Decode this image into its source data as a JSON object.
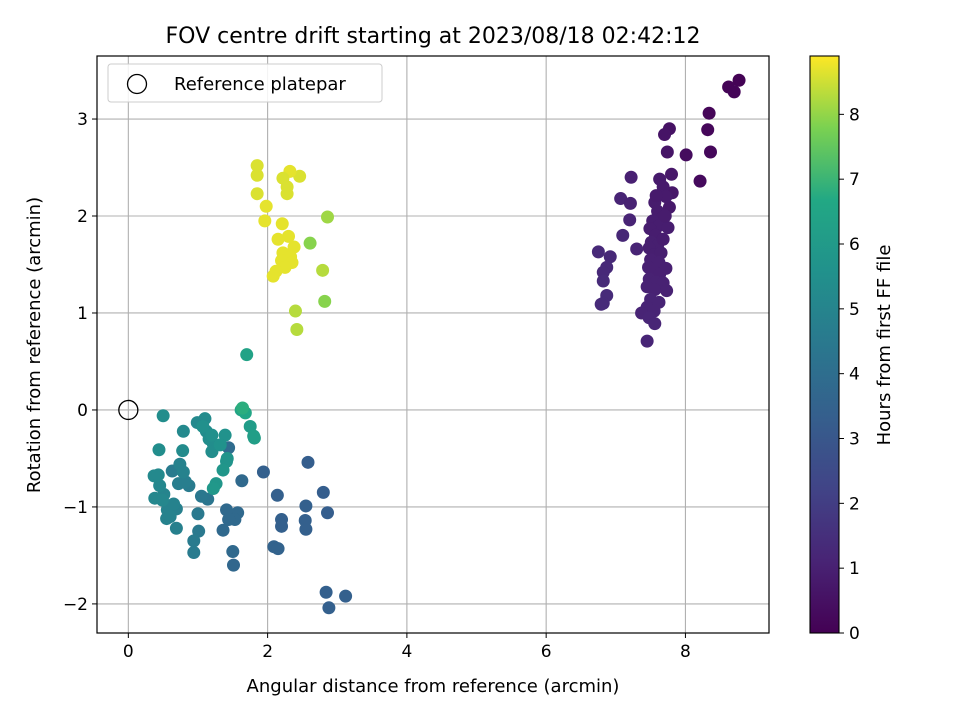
{
  "chart_data": {
    "type": "scatter",
    "title": "FOV centre drift starting at 2023/08/18 02:42:12",
    "xlabel": "Angular distance from reference (arcmin)",
    "ylabel": "Rotation from reference (arcmin)",
    "xlim": [
      -0.45,
      9.2
    ],
    "ylim": [
      -2.3,
      3.65
    ],
    "xticks": [
      0,
      2,
      4,
      6,
      8
    ],
    "yticks": [
      -2,
      -1,
      0,
      1,
      2,
      3
    ],
    "grid": true,
    "legend": {
      "position": "top-left",
      "entries": [
        "Reference platepar"
      ]
    },
    "reference_point": {
      "x": 0,
      "y": 0,
      "label": "Reference platepar"
    },
    "colorbar": {
      "label": "Hours from first FF file",
      "colormap": "viridis",
      "range": [
        0,
        8.9
      ],
      "ticks": [
        0,
        1,
        2,
        3,
        4,
        5,
        6,
        7,
        8
      ]
    },
    "points": [
      {
        "x": 8.77,
        "y": 3.4,
        "h": 0.05
      },
      {
        "x": 8.62,
        "y": 3.33,
        "h": 0.08
      },
      {
        "x": 8.7,
        "y": 3.28,
        "h": 0.1
      },
      {
        "x": 8.34,
        "y": 3.06,
        "h": 0.15
      },
      {
        "x": 8.32,
        "y": 2.89,
        "h": 0.2
      },
      {
        "x": 8.36,
        "y": 2.66,
        "h": 0.22
      },
      {
        "x": 8.01,
        "y": 2.63,
        "h": 0.35
      },
      {
        "x": 8.21,
        "y": 2.36,
        "h": 0.3
      },
      {
        "x": 7.77,
        "y": 2.9,
        "h": 0.55
      },
      {
        "x": 7.7,
        "y": 2.84,
        "h": 0.6
      },
      {
        "x": 7.74,
        "y": 2.66,
        "h": 0.65
      },
      {
        "x": 7.8,
        "y": 2.43,
        "h": 0.7
      },
      {
        "x": 7.81,
        "y": 2.24,
        "h": 0.7
      },
      {
        "x": 7.77,
        "y": 2.09,
        "h": 0.75
      },
      {
        "x": 7.63,
        "y": 2.38,
        "h": 0.8
      },
      {
        "x": 7.68,
        "y": 2.3,
        "h": 0.8
      },
      {
        "x": 7.72,
        "y": 2.2,
        "h": 0.8
      },
      {
        "x": 7.56,
        "y": 2.14,
        "h": 0.85
      },
      {
        "x": 7.6,
        "y": 2.05,
        "h": 0.85
      },
      {
        "x": 7.66,
        "y": 1.98,
        "h": 0.85
      },
      {
        "x": 7.53,
        "y": 1.95,
        "h": 0.9
      },
      {
        "x": 7.62,
        "y": 1.9,
        "h": 0.9
      },
      {
        "x": 7.75,
        "y": 1.88,
        "h": 0.9
      },
      {
        "x": 7.49,
        "y": 1.87,
        "h": 0.9
      },
      {
        "x": 7.57,
        "y": 1.8,
        "h": 0.9
      },
      {
        "x": 7.51,
        "y": 1.73,
        "h": 0.95
      },
      {
        "x": 7.6,
        "y": 1.7,
        "h": 0.95
      },
      {
        "x": 7.48,
        "y": 1.67,
        "h": 0.95
      },
      {
        "x": 7.55,
        "y": 1.6,
        "h": 0.95
      },
      {
        "x": 7.65,
        "y": 1.62,
        "h": 0.95
      },
      {
        "x": 7.5,
        "y": 1.55,
        "h": 1.0
      },
      {
        "x": 7.62,
        "y": 1.52,
        "h": 1.0
      },
      {
        "x": 7.72,
        "y": 1.46,
        "h": 1.0
      },
      {
        "x": 7.47,
        "y": 1.47,
        "h": 1.0
      },
      {
        "x": 7.55,
        "y": 1.43,
        "h": 1.0
      },
      {
        "x": 7.63,
        "y": 1.4,
        "h": 1.0
      },
      {
        "x": 7.48,
        "y": 1.35,
        "h": 1.05
      },
      {
        "x": 7.58,
        "y": 1.32,
        "h": 1.05
      },
      {
        "x": 7.68,
        "y": 1.31,
        "h": 1.05
      },
      {
        "x": 7.45,
        "y": 1.27,
        "h": 1.05
      },
      {
        "x": 7.56,
        "y": 1.24,
        "h": 1.05
      },
      {
        "x": 7.73,
        "y": 1.23,
        "h": 1.05
      },
      {
        "x": 7.5,
        "y": 1.14,
        "h": 1.1
      },
      {
        "x": 7.62,
        "y": 1.11,
        "h": 1.1
      },
      {
        "x": 7.45,
        "y": 1.06,
        "h": 1.1
      },
      {
        "x": 7.55,
        "y": 1.02,
        "h": 1.1
      },
      {
        "x": 7.37,
        "y": 1.0,
        "h": 1.1
      },
      {
        "x": 7.48,
        "y": 0.95,
        "h": 1.15
      },
      {
        "x": 7.56,
        "y": 0.89,
        "h": 1.15
      },
      {
        "x": 7.45,
        "y": 0.71,
        "h": 1.15
      },
      {
        "x": 7.68,
        "y": 1.76,
        "h": 0.9
      },
      {
        "x": 7.71,
        "y": 2.0,
        "h": 0.85
      },
      {
        "x": 7.58,
        "y": 2.21,
        "h": 0.8
      },
      {
        "x": 7.22,
        "y": 2.4,
        "h": 1.0
      },
      {
        "x": 7.07,
        "y": 2.18,
        "h": 1.1
      },
      {
        "x": 7.21,
        "y": 2.13,
        "h": 1.05
      },
      {
        "x": 7.2,
        "y": 1.96,
        "h": 1.1
      },
      {
        "x": 7.3,
        "y": 1.66,
        "h": 1.1
      },
      {
        "x": 7.1,
        "y": 1.8,
        "h": 1.2
      },
      {
        "x": 6.75,
        "y": 1.63,
        "h": 1.3
      },
      {
        "x": 6.92,
        "y": 1.58,
        "h": 1.25
      },
      {
        "x": 6.87,
        "y": 1.47,
        "h": 1.3
      },
      {
        "x": 6.82,
        "y": 1.42,
        "h": 1.3
      },
      {
        "x": 6.82,
        "y": 1.33,
        "h": 1.35
      },
      {
        "x": 6.87,
        "y": 1.18,
        "h": 1.35
      },
      {
        "x": 6.82,
        "y": 1.1,
        "h": 1.35
      },
      {
        "x": 6.79,
        "y": 1.09,
        "h": 1.35
      },
      {
        "x": 2.58,
        "y": -0.54,
        "h": 3.3
      },
      {
        "x": 1.94,
        "y": -0.64,
        "h": 3.4
      },
      {
        "x": 2.8,
        "y": -0.85,
        "h": 3.3
      },
      {
        "x": 2.14,
        "y": -0.88,
        "h": 3.4
      },
      {
        "x": 2.55,
        "y": -0.99,
        "h": 3.4
      },
      {
        "x": 2.86,
        "y": -1.06,
        "h": 3.3
      },
      {
        "x": 2.2,
        "y": -1.13,
        "h": 3.4
      },
      {
        "x": 2.54,
        "y": -1.14,
        "h": 3.4
      },
      {
        "x": 2.2,
        "y": -1.2,
        "h": 3.4
      },
      {
        "x": 2.55,
        "y": -1.23,
        "h": 3.4
      },
      {
        "x": 2.09,
        "y": -1.41,
        "h": 3.5
      },
      {
        "x": 2.15,
        "y": -1.43,
        "h": 3.5
      },
      {
        "x": 2.84,
        "y": -1.88,
        "h": 3.4
      },
      {
        "x": 3.12,
        "y": -1.92,
        "h": 3.4
      },
      {
        "x": 2.88,
        "y": -2.04,
        "h": 3.4
      },
      {
        "x": 1.44,
        "y": -0.39,
        "h": 3.9
      },
      {
        "x": 1.63,
        "y": -0.73,
        "h": 3.8
      },
      {
        "x": 1.57,
        "y": -1.06,
        "h": 3.8
      },
      {
        "x": 1.53,
        "y": -1.13,
        "h": 3.8
      },
      {
        "x": 1.41,
        "y": -1.03,
        "h": 3.8
      },
      {
        "x": 1.44,
        "y": -1.13,
        "h": 3.8
      },
      {
        "x": 1.36,
        "y": -1.24,
        "h": 3.8
      },
      {
        "x": 1.5,
        "y": -1.46,
        "h": 3.8
      },
      {
        "x": 1.51,
        "y": -1.6,
        "h": 3.7
      },
      {
        "x": 1.14,
        "y": -0.92,
        "h": 4.3
      },
      {
        "x": 1.05,
        "y": -0.89,
        "h": 4.4
      },
      {
        "x": 1.0,
        "y": -1.07,
        "h": 4.5
      },
      {
        "x": 0.87,
        "y": -0.78,
        "h": 4.6
      },
      {
        "x": 1.01,
        "y": -1.25,
        "h": 4.5
      },
      {
        "x": 0.94,
        "y": -1.35,
        "h": 4.6
      },
      {
        "x": 0.94,
        "y": -1.47,
        "h": 4.6
      },
      {
        "x": 0.69,
        "y": -1.22,
        "h": 4.8
      },
      {
        "x": 0.72,
        "y": -0.76,
        "h": 4.7
      },
      {
        "x": 0.63,
        "y": -0.63,
        "h": 4.6
      },
      {
        "x": 0.69,
        "y": -1.02,
        "h": 4.8
      },
      {
        "x": 0.56,
        "y": -1.03,
        "h": 4.9
      },
      {
        "x": 0.65,
        "y": -0.97,
        "h": 4.9
      },
      {
        "x": 0.55,
        "y": -1.12,
        "h": 4.9
      },
      {
        "x": 0.6,
        "y": -1.1,
        "h": 4.9
      },
      {
        "x": 0.82,
        "y": -0.74,
        "h": 4.7
      },
      {
        "x": 0.74,
        "y": -0.56,
        "h": 4.9
      },
      {
        "x": 0.79,
        "y": -0.64,
        "h": 4.9
      },
      {
        "x": 0.51,
        "y": -0.87,
        "h": 5.0
      },
      {
        "x": 0.45,
        "y": -0.78,
        "h": 5.1
      },
      {
        "x": 0.38,
        "y": -0.91,
        "h": 5.1
      },
      {
        "x": 0.49,
        "y": -0.93,
        "h": 5.1
      },
      {
        "x": 0.37,
        "y": -0.68,
        "h": 5.2
      },
      {
        "x": 0.43,
        "y": -0.67,
        "h": 5.2
      },
      {
        "x": 1.1,
        "y": -0.09,
        "h": 5.3
      },
      {
        "x": 1.12,
        "y": -0.22,
        "h": 5.3
      },
      {
        "x": 1.16,
        "y": -0.3,
        "h": 5.4
      },
      {
        "x": 1.22,
        "y": -0.35,
        "h": 5.4
      },
      {
        "x": 1.2,
        "y": -0.43,
        "h": 5.4
      },
      {
        "x": 0.99,
        "y": -0.13,
        "h": 5.2
      },
      {
        "x": 0.79,
        "y": -0.22,
        "h": 5.2
      },
      {
        "x": 0.78,
        "y": -0.42,
        "h": 5.3
      },
      {
        "x": 0.5,
        "y": -0.06,
        "h": 5.4
      },
      {
        "x": 0.44,
        "y": -0.41,
        "h": 5.4
      },
      {
        "x": 1.39,
        "y": -0.26,
        "h": 5.6
      },
      {
        "x": 1.42,
        "y": -0.5,
        "h": 5.7
      },
      {
        "x": 1.41,
        "y": -0.53,
        "h": 5.7
      },
      {
        "x": 1.32,
        "y": -0.36,
        "h": 5.6
      },
      {
        "x": 1.36,
        "y": -0.62,
        "h": 5.8
      },
      {
        "x": 1.26,
        "y": -0.76,
        "h": 5.8
      },
      {
        "x": 1.22,
        "y": -0.81,
        "h": 5.9
      },
      {
        "x": 1.07,
        "y": -0.17,
        "h": 5.5
      },
      {
        "x": 1.2,
        "y": -0.26,
        "h": 5.5
      },
      {
        "x": 1.75,
        "y": -0.17,
        "h": 6.1
      },
      {
        "x": 1.81,
        "y": -0.29,
        "h": 6.2
      },
      {
        "x": 1.8,
        "y": -0.27,
        "h": 6.2
      },
      {
        "x": 1.62,
        "y": 0.0,
        "h": 6.5
      },
      {
        "x": 1.68,
        "y": -0.03,
        "h": 6.6
      },
      {
        "x": 1.64,
        "y": 0.02,
        "h": 6.8
      },
      {
        "x": 1.7,
        "y": 0.57,
        "h": 6.4
      },
      {
        "x": 2.61,
        "y": 1.72,
        "h": 7.9
      },
      {
        "x": 2.79,
        "y": 1.44,
        "h": 8.3
      },
      {
        "x": 2.86,
        "y": 1.99,
        "h": 8.1
      },
      {
        "x": 2.82,
        "y": 1.12,
        "h": 7.9
      },
      {
        "x": 2.4,
        "y": 1.02,
        "h": 8.3
      },
      {
        "x": 2.42,
        "y": 0.83,
        "h": 8.3
      },
      {
        "x": 2.46,
        "y": 2.41,
        "h": 8.6
      },
      {
        "x": 2.32,
        "y": 2.46,
        "h": 8.7
      },
      {
        "x": 2.22,
        "y": 2.39,
        "h": 8.6
      },
      {
        "x": 2.28,
        "y": 2.3,
        "h": 8.6
      },
      {
        "x": 2.28,
        "y": 2.23,
        "h": 8.6
      },
      {
        "x": 1.85,
        "y": 2.52,
        "h": 8.6
      },
      {
        "x": 1.85,
        "y": 2.42,
        "h": 8.6
      },
      {
        "x": 1.85,
        "y": 2.23,
        "h": 8.6
      },
      {
        "x": 1.98,
        "y": 2.1,
        "h": 8.7
      },
      {
        "x": 1.96,
        "y": 1.95,
        "h": 8.7
      },
      {
        "x": 2.21,
        "y": 1.92,
        "h": 8.7
      },
      {
        "x": 2.3,
        "y": 1.79,
        "h": 8.7
      },
      {
        "x": 2.15,
        "y": 1.76,
        "h": 8.7
      },
      {
        "x": 2.38,
        "y": 1.68,
        "h": 8.7
      },
      {
        "x": 2.22,
        "y": 1.62,
        "h": 8.7
      },
      {
        "x": 2.33,
        "y": 1.58,
        "h": 8.7
      },
      {
        "x": 2.2,
        "y": 1.54,
        "h": 8.7
      },
      {
        "x": 2.35,
        "y": 1.52,
        "h": 8.7
      },
      {
        "x": 2.25,
        "y": 1.47,
        "h": 8.7
      },
      {
        "x": 2.12,
        "y": 1.43,
        "h": 8.7
      },
      {
        "x": 2.08,
        "y": 1.38,
        "h": 8.7
      }
    ]
  }
}
